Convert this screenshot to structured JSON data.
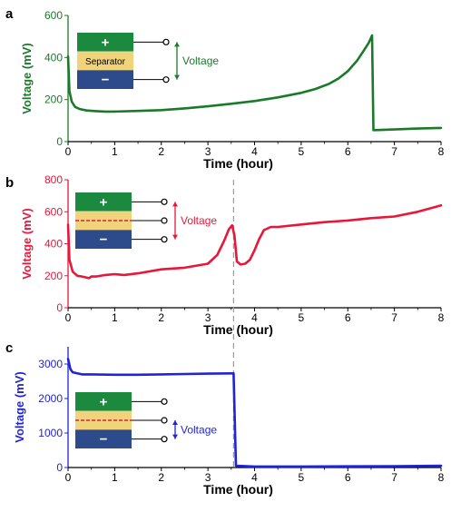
{
  "colors": {
    "panel_a": "#1a7a2a",
    "panel_b": "#e8173a",
    "panel_c": "#1f24d6",
    "cell_top": "#1b8a3e",
    "cell_bottom": "#2d4a8a",
    "separator": "#f0d37a",
    "separator_dash": "#e0203a",
    "dashed_line": "#9a9a9a"
  },
  "chart_data": [
    {
      "type": "line",
      "panel": "a",
      "xlabel": "Time (hour)",
      "ylabel": "Voltage (mV)",
      "xlim": [
        0,
        8
      ],
      "ylim": [
        0,
        600
      ],
      "xticks": [
        "0",
        "1",
        "2",
        "3",
        "4",
        "5",
        "6",
        "7",
        "8"
      ],
      "yticks": [
        "0",
        "200",
        "400",
        "600"
      ],
      "inset": {
        "top_sign": "+",
        "middle": "Separator",
        "bottom_sign": "−",
        "arrow_label": "Voltage"
      },
      "series": [
        {
          "x": [
            0,
            0.03,
            0.08,
            0.15,
            0.25,
            0.4,
            0.6,
            0.8,
            1,
            1.5,
            2,
            2.5,
            3,
            3.5,
            4,
            4.5,
            5,
            5.3,
            5.6,
            5.8,
            6,
            6.2,
            6.35,
            6.45,
            6.52,
            6.55,
            6.6,
            7,
            7.5,
            8
          ],
          "y": [
            405,
            240,
            190,
            165,
            155,
            148,
            145,
            143,
            143,
            146,
            150,
            158,
            168,
            180,
            193,
            210,
            232,
            250,
            275,
            300,
            335,
            385,
            435,
            470,
            505,
            55,
            55,
            58,
            62,
            65
          ]
        }
      ]
    },
    {
      "type": "line",
      "panel": "b",
      "xlabel": "Time (hour)",
      "ylabel": "Voltage (mV)",
      "xlim": [
        0,
        8
      ],
      "ylim": [
        0,
        800
      ],
      "xticks": [
        "0",
        "1",
        "2",
        "3",
        "4",
        "5",
        "6",
        "7",
        "8"
      ],
      "yticks": [
        "0",
        "200",
        "400",
        "600",
        "800"
      ],
      "inset": {
        "top_sign": "+",
        "bottom_sign": "−",
        "arrow_label": "Voltage"
      },
      "marker_x": 3.55,
      "series": [
        {
          "x": [
            0,
            0.03,
            0.1,
            0.2,
            0.3,
            0.45,
            0.5,
            0.6,
            0.8,
            1,
            1.2,
            1.5,
            2,
            2.5,
            3,
            3.2,
            3.35,
            3.45,
            3.52,
            3.57,
            3.62,
            3.7,
            3.8,
            3.9,
            4.0,
            4.1,
            4.2,
            4.35,
            4.5,
            5,
            5.5,
            6,
            6.5,
            7,
            7.5,
            8
          ],
          "y": [
            520,
            300,
            225,
            200,
            195,
            185,
            195,
            195,
            205,
            210,
            205,
            215,
            240,
            250,
            275,
            330,
            420,
            490,
            515,
            450,
            290,
            270,
            275,
            300,
            360,
            430,
            485,
            505,
            505,
            520,
            535,
            545,
            560,
            570,
            600,
            640
          ]
        }
      ]
    },
    {
      "type": "line",
      "panel": "c",
      "xlabel": "Time (hour)",
      "ylabel": "Voltage (mV)",
      "xlim": [
        0,
        8
      ],
      "ylim": [
        0,
        3500
      ],
      "xticks": [
        "0",
        "1",
        "2",
        "3",
        "4",
        "5",
        "6",
        "7",
        "8"
      ],
      "yticks": [
        "0",
        "1000",
        "2000",
        "3000"
      ],
      "inset": {
        "top_sign": "+",
        "bottom_sign": "−",
        "arrow_label": "Voltage"
      },
      "series": [
        {
          "x": [
            0,
            0.05,
            0.1,
            0.3,
            0.5,
            1,
            1.5,
            2,
            2.5,
            3,
            3.5,
            3.55,
            3.6,
            4,
            5,
            6,
            7,
            8
          ],
          "y": [
            3150,
            2850,
            2760,
            2700,
            2700,
            2690,
            2690,
            2700,
            2710,
            2720,
            2730,
            2730,
            50,
            30,
            30,
            35,
            40,
            50
          ]
        }
      ]
    }
  ],
  "panels": {
    "a": {
      "letter": "a"
    },
    "b": {
      "letter": "b"
    },
    "c": {
      "letter": "c"
    }
  }
}
